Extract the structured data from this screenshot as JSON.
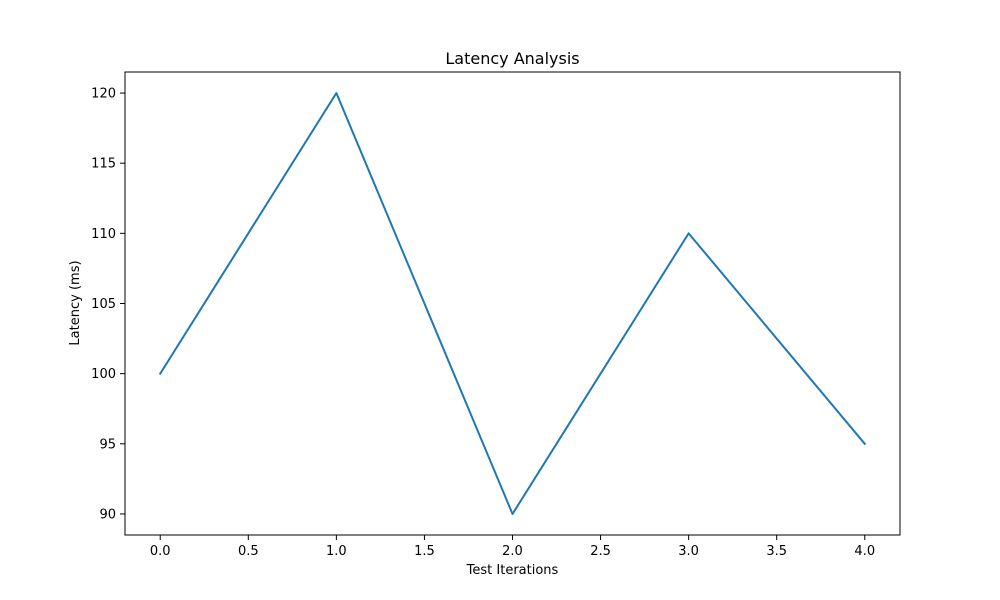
{
  "chart_data": {
    "type": "line",
    "title": "Latency Analysis",
    "xlabel": "Test Iterations",
    "ylabel": "Latency (ms)",
    "x": [
      0,
      1,
      2,
      3,
      4
    ],
    "series": [
      {
        "values": [
          100,
          120,
          90,
          110,
          95
        ],
        "color": "#1f77b4"
      }
    ],
    "xlim": [
      -0.2,
      4.2
    ],
    "ylim": [
      88.5,
      121.5
    ],
    "x_ticks": [
      0.0,
      0.5,
      1.0,
      1.5,
      2.0,
      2.5,
      3.0,
      3.5,
      4.0
    ],
    "x_tick_labels": [
      "0.0",
      "0.5",
      "1.0",
      "1.5",
      "2.0",
      "2.5",
      "3.0",
      "3.5",
      "4.0"
    ],
    "y_ticks": [
      90,
      95,
      100,
      105,
      110,
      115,
      120
    ],
    "y_tick_labels": [
      "90",
      "95",
      "100",
      "105",
      "110",
      "115",
      "120"
    ],
    "grid": false,
    "legend": "none"
  }
}
